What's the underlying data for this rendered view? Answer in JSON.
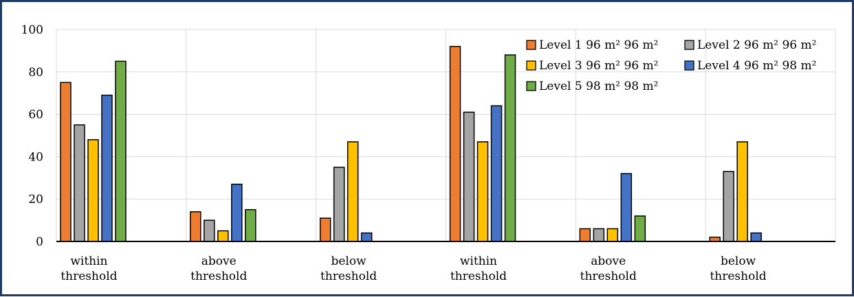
{
  "chart_data": {
    "type": "bar",
    "title": "",
    "xlabel": "",
    "ylabel": "",
    "ylim": [
      0,
      100
    ],
    "yticks": [
      0,
      20,
      40,
      60,
      80,
      100
    ],
    "grid": true,
    "legend_position": "top-right",
    "categories": [
      [
        "within",
        "threshold"
      ],
      [
        "above",
        "threshold"
      ],
      [
        "below",
        "threshold"
      ],
      [
        "within",
        "threshold"
      ],
      [
        "above",
        "threshold"
      ],
      [
        "below",
        "threshold"
      ]
    ],
    "series": [
      {
        "name": "Level 1 96 m² 96 m²",
        "color": "#ED7D31",
        "values": [
          75,
          14,
          11,
          92,
          6,
          2
        ]
      },
      {
        "name": "Level 2 96 m² 96 m²",
        "color": "#A5A5A5",
        "values": [
          55,
          10,
          35,
          61,
          6,
          33
        ]
      },
      {
        "name": "Level 3 96 m² 96 m²",
        "color": "#FFC000",
        "values": [
          48,
          5,
          47,
          47,
          6,
          47
        ]
      },
      {
        "name": "Level 4 96 m² 98 m²",
        "color": "#4472C4",
        "values": [
          69,
          27,
          4,
          64,
          32,
          4
        ]
      },
      {
        "name": "Level 5 98 m² 98 m²",
        "color": "#70AD47",
        "values": [
          85,
          15,
          0,
          88,
          12,
          0
        ]
      }
    ]
  }
}
